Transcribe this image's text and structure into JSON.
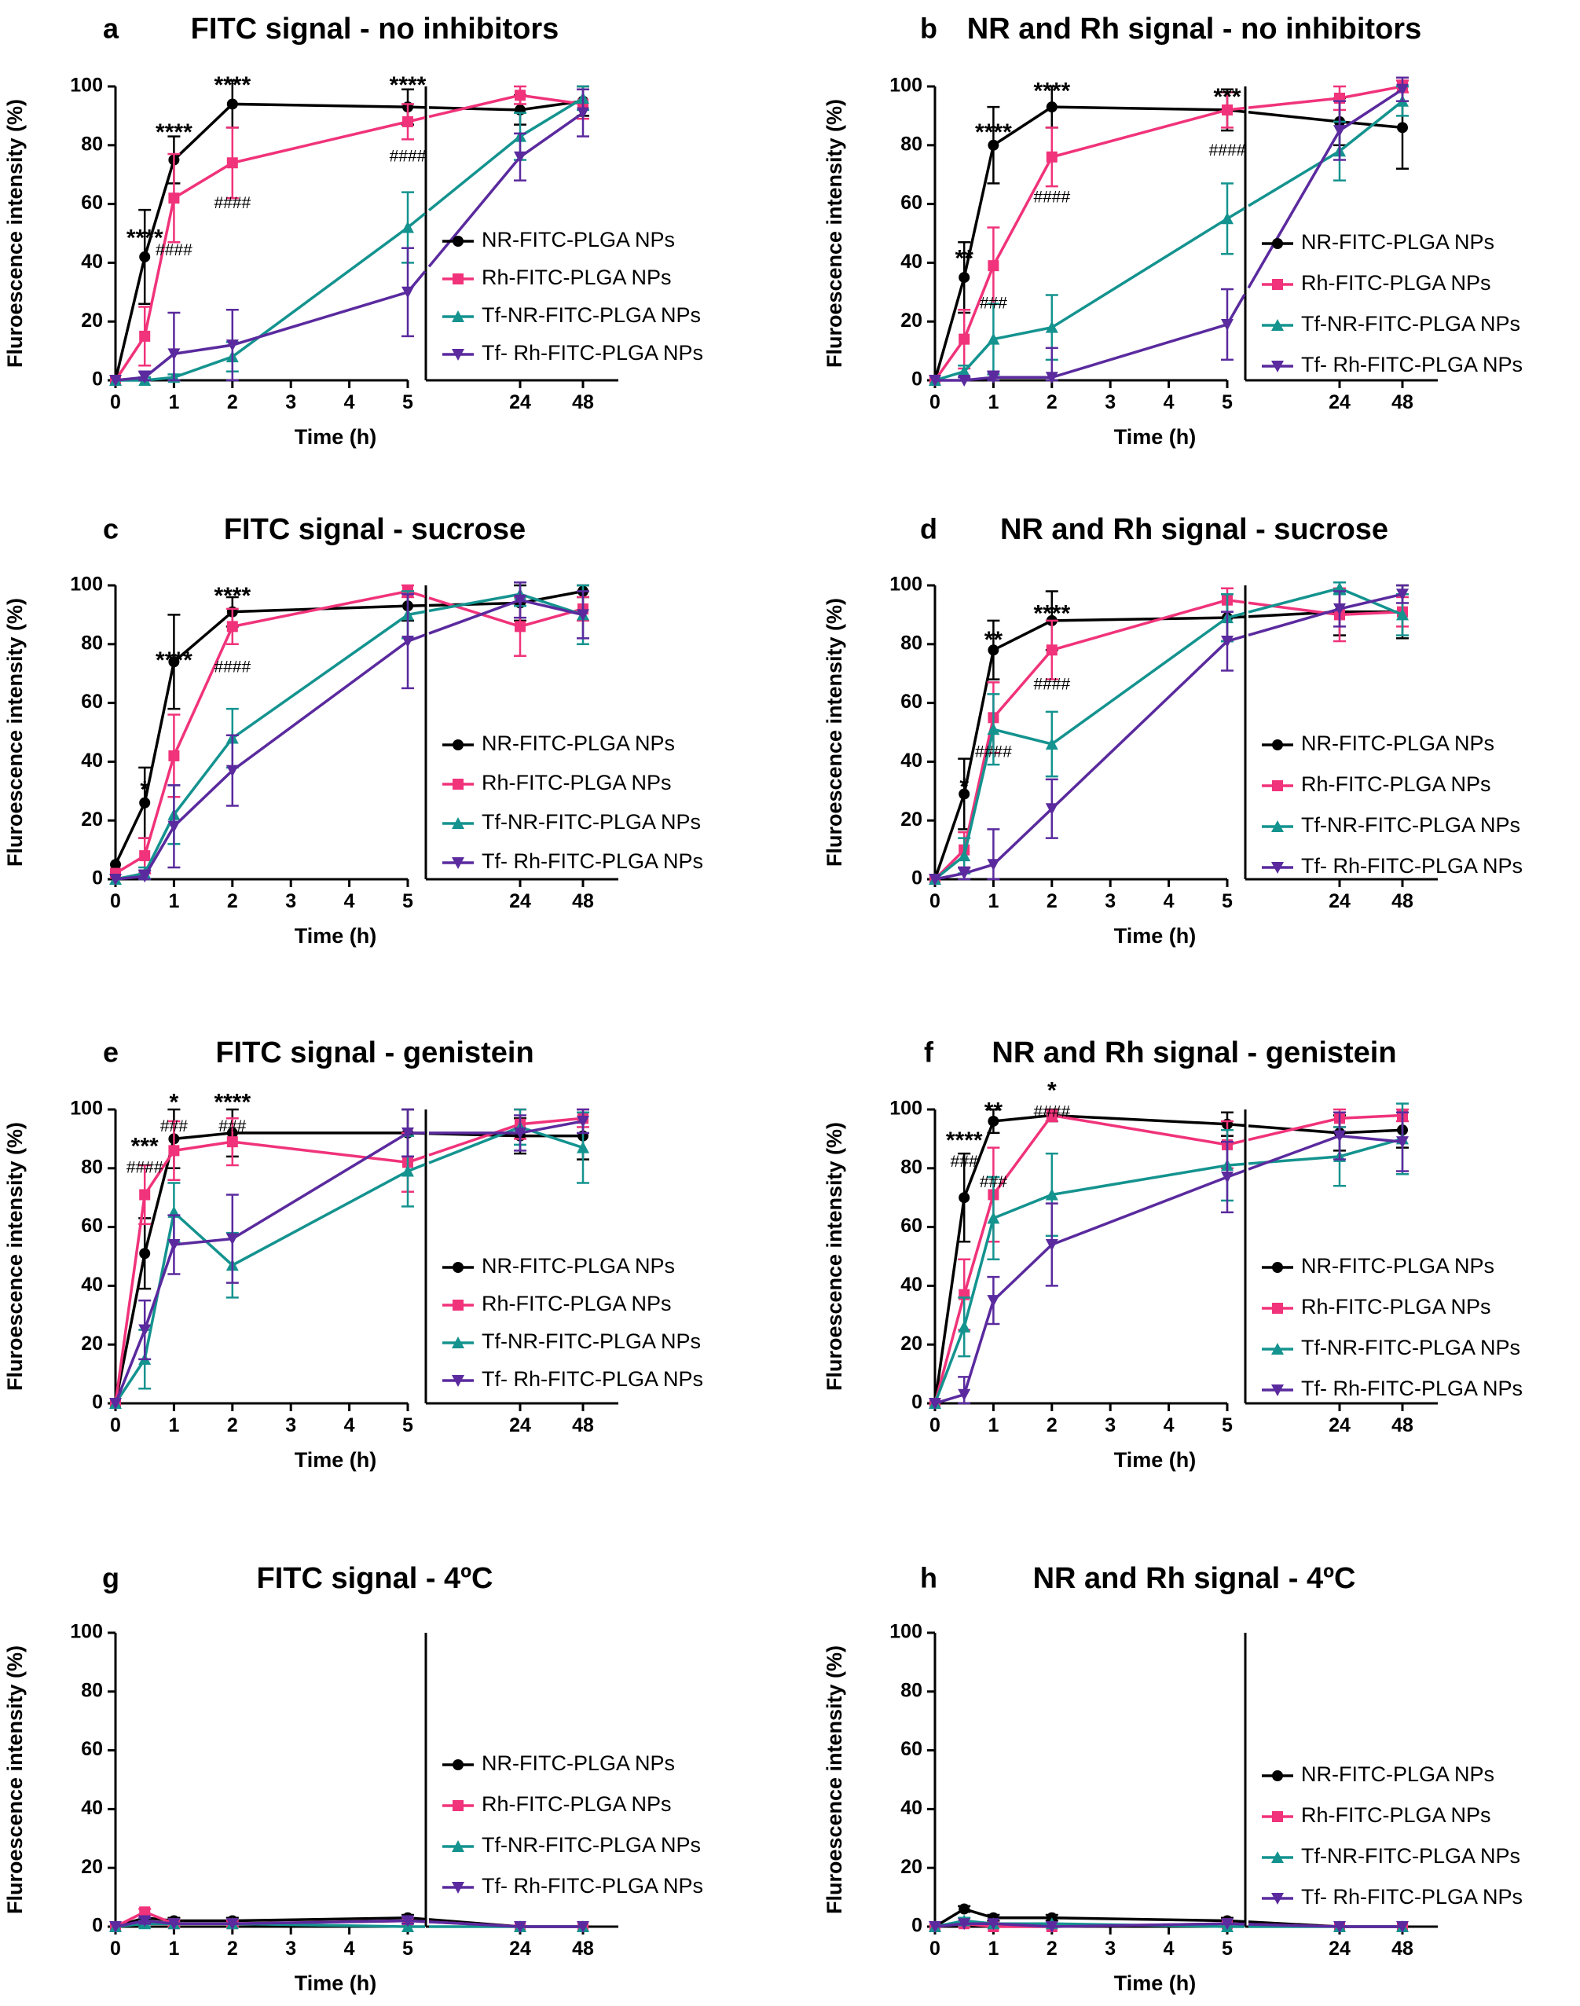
{
  "series_styles": [
    {
      "name": "NR-FITC-PLGA NPs",
      "color": "#000000",
      "marker": "circle"
    },
    {
      "name": "Rh-FITC-PLGA NPs",
      "color": "#f0337a",
      "marker": "square"
    },
    {
      "name": "Tf-NR-FITC-PLGA NPs",
      "color": "#14938f",
      "marker": "triangle-up"
    },
    {
      "name": "Tf- Rh-FITC-PLGA NPs",
      "color": "#5a2a9e",
      "marker": "triangle-down"
    }
  ],
  "chart_data": [
    {
      "panel": "a",
      "title": "FITC signal - no inhibitors",
      "type": "line",
      "xlabel": "Time (h)",
      "ylabel": "Fluroescence intensity (%)",
      "ylim": [
        0,
        100
      ],
      "yticks": [
        "0",
        "20",
        "40",
        "60",
        "80",
        "100"
      ],
      "x": [
        0,
        0.5,
        1,
        2,
        5,
        24,
        48
      ],
      "xticks": [
        "0",
        "1",
        "2",
        "3",
        "4",
        "5",
        "24",
        "48"
      ],
      "legend": "right",
      "series": [
        {
          "name": "NR-FITC-PLGA NPs",
          "values": [
            0,
            42,
            75,
            94,
            93,
            92,
            95
          ],
          "err": [
            0,
            16,
            8,
            8,
            6,
            5,
            5
          ]
        },
        {
          "name": "Rh-FITC-PLGA NPs",
          "values": [
            0,
            15,
            62,
            74,
            88,
            97,
            94
          ],
          "err": [
            0,
            10,
            15,
            12,
            6,
            3,
            5
          ]
        },
        {
          "name": "Tf-NR-FITC-PLGA NPs",
          "values": [
            0,
            0,
            1,
            8,
            52,
            83,
            96
          ],
          "err": [
            0,
            1,
            1,
            5,
            12,
            8,
            4
          ]
        },
        {
          "name": "Tf- Rh-FITC-PLGA NPs",
          "values": [
            0,
            1,
            9,
            12,
            30,
            76,
            91
          ],
          "err": [
            0,
            2,
            14,
            12,
            15,
            8,
            8
          ]
        }
      ],
      "annotations": [
        {
          "x": 0.5,
          "y": 48,
          "text": "****"
        },
        {
          "x": 1,
          "y": 84,
          "text": "****"
        },
        {
          "x": 1,
          "y": 44,
          "text": "####"
        },
        {
          "x": 2,
          "y": 100,
          "text": "****"
        },
        {
          "x": 2,
          "y": 60,
          "text": "####"
        },
        {
          "x": 5,
          "y": 100,
          "text": "****"
        },
        {
          "x": 5,
          "y": 76,
          "text": "####"
        }
      ]
    },
    {
      "panel": "b",
      "title": "NR and Rh signal - no inhibitors",
      "type": "line",
      "xlabel": "Time (h)",
      "ylabel": "Fluroescence intensity (%)",
      "ylim": [
        0,
        100
      ],
      "yticks": [
        "0",
        "20",
        "40",
        "60",
        "80",
        "100"
      ],
      "x": [
        0,
        0.5,
        1,
        2,
        5,
        24,
        48
      ],
      "xticks": [
        "0",
        "1",
        "2",
        "3",
        "4",
        "5",
        "24",
        "48"
      ],
      "legend": "right",
      "series": [
        {
          "name": "NR-FITC-PLGA NPs",
          "values": [
            0,
            35,
            80,
            93,
            92,
            88,
            86
          ],
          "err": [
            0,
            12,
            13,
            7,
            7,
            8,
            14
          ]
        },
        {
          "name": "Rh-FITC-PLGA NPs",
          "values": [
            0,
            14,
            39,
            76,
            92,
            96,
            100
          ],
          "err": [
            0,
            10,
            13,
            10,
            6,
            4,
            2
          ]
        },
        {
          "name": "Tf-NR-FITC-PLGA NPs",
          "values": [
            0,
            3,
            14,
            18,
            55,
            78,
            95
          ],
          "err": [
            0,
            2,
            12,
            11,
            12,
            10,
            5
          ]
        },
        {
          "name": "Tf- Rh-FITC-PLGA NPs",
          "values": [
            0,
            0,
            1,
            1,
            19,
            85,
            99
          ],
          "err": [
            0,
            1,
            2,
            10,
            12,
            10,
            4
          ]
        }
      ],
      "annotations": [
        {
          "x": 0.5,
          "y": 41,
          "text": "**"
        },
        {
          "x": 1,
          "y": 84,
          "text": "****"
        },
        {
          "x": 1,
          "y": 26,
          "text": "###"
        },
        {
          "x": 2,
          "y": 98,
          "text": "****"
        },
        {
          "x": 2,
          "y": 62,
          "text": "####"
        },
        {
          "x": 5,
          "y": 96,
          "text": "***"
        },
        {
          "x": 5,
          "y": 78,
          "text": "####"
        }
      ]
    },
    {
      "panel": "c",
      "title": "FITC signal - sucrose",
      "type": "line",
      "xlabel": "Time (h)",
      "ylabel": "Fluroescence intensity (%)",
      "ylim": [
        0,
        100
      ],
      "yticks": [
        "0",
        "20",
        "40",
        "60",
        "80",
        "100"
      ],
      "x": [
        0,
        0.5,
        1,
        2,
        5,
        24,
        48
      ],
      "xticks": [
        "0",
        "1",
        "2",
        "3",
        "4",
        "5",
        "24",
        "48"
      ],
      "legend": "right",
      "series": [
        {
          "name": "NR-FITC-PLGA NPs",
          "values": [
            5,
            26,
            74,
            91,
            93,
            94,
            98
          ],
          "err": [
            0,
            12,
            16,
            5,
            5,
            6,
            2
          ]
        },
        {
          "name": "Rh-FITC-PLGA NPs",
          "values": [
            2,
            8,
            42,
            86,
            98,
            86,
            92
          ],
          "err": [
            0,
            6,
            14,
            6,
            2,
            10,
            4
          ]
        },
        {
          "name": "Tf-NR-FITC-PLGA NPs",
          "values": [
            0,
            2,
            22,
            48,
            90,
            97,
            90
          ],
          "err": [
            0,
            2,
            10,
            10,
            8,
            4,
            10
          ]
        },
        {
          "name": "Tf- Rh-FITC-PLGA NPs",
          "values": [
            0,
            1,
            18,
            37,
            81,
            95,
            90
          ],
          "err": [
            0,
            2,
            14,
            12,
            16,
            6,
            8
          ]
        }
      ],
      "annotations": [
        {
          "x": 0.5,
          "y": 30,
          "text": "*"
        },
        {
          "x": 1,
          "y": 74,
          "text": "****"
        },
        {
          "x": 2,
          "y": 96,
          "text": "****"
        },
        {
          "x": 2,
          "y": 72,
          "text": "####"
        }
      ]
    },
    {
      "panel": "d",
      "title": "NR and Rh signal - sucrose",
      "type": "line",
      "xlabel": "Time (h)",
      "ylabel": "Fluroescence intensity (%)",
      "ylim": [
        0,
        100
      ],
      "yticks": [
        "0",
        "20",
        "40",
        "60",
        "80",
        "100"
      ],
      "x": [
        0,
        0.5,
        1,
        2,
        5,
        24,
        48
      ],
      "xticks": [
        "0",
        "1",
        "2",
        "3",
        "4",
        "5",
        "24",
        "48"
      ],
      "legend": "right",
      "series": [
        {
          "name": "NR-FITC-PLGA NPs",
          "values": [
            0,
            29,
            78,
            88,
            89,
            91,
            91
          ],
          "err": [
            0,
            12,
            10,
            10,
            8,
            8,
            9
          ]
        },
        {
          "name": "Rh-FITC-PLGA NPs",
          "values": [
            0,
            10,
            55,
            78,
            95,
            90,
            91
          ],
          "err": [
            0,
            6,
            12,
            10,
            4,
            9,
            5
          ]
        },
        {
          "name": "Tf-NR-FITC-PLGA NPs",
          "values": [
            0,
            8,
            51,
            46,
            89,
            99,
            90
          ],
          "err": [
            0,
            6,
            12,
            11,
            8,
            2,
            7
          ]
        },
        {
          "name": "Tf- Rh-FITC-PLGA NPs",
          "values": [
            0,
            2,
            5,
            24,
            81,
            92,
            97
          ],
          "err": [
            0,
            2,
            12,
            10,
            10,
            6,
            3
          ]
        }
      ],
      "annotations": [
        {
          "x": 0.5,
          "y": 31,
          "text": "*"
        },
        {
          "x": 1,
          "y": 81,
          "text": "**"
        },
        {
          "x": 1,
          "y": 43,
          "text": "####"
        },
        {
          "x": 2,
          "y": 90,
          "text": "****"
        },
        {
          "x": 2,
          "y": 66,
          "text": "####"
        }
      ]
    },
    {
      "panel": "e",
      "title": "FITC signal - genistein",
      "type": "line",
      "xlabel": "Time (h)",
      "ylabel": "Fluroescence intensity (%)",
      "ylim": [
        0,
        100
      ],
      "yticks": [
        "0",
        "20",
        "40",
        "60",
        "80",
        "100"
      ],
      "x": [
        0,
        0.5,
        1,
        2,
        5,
        24,
        48
      ],
      "xticks": [
        "0",
        "1",
        "2",
        "3",
        "4",
        "5",
        "24",
        "48"
      ],
      "legend": "right",
      "series": [
        {
          "name": "NR-FITC-PLGA NPs",
          "values": [
            0,
            51,
            90,
            92,
            92,
            91,
            91
          ],
          "err": [
            0,
            12,
            10,
            8,
            8,
            6,
            8
          ]
        },
        {
          "name": "Rh-FITC-PLGA NPs",
          "values": [
            0,
            71,
            86,
            89,
            82,
            95,
            97
          ],
          "err": [
            0,
            10,
            10,
            8,
            10,
            5,
            3
          ]
        },
        {
          "name": "Tf-NR-FITC-PLGA NPs",
          "values": [
            0,
            15,
            65,
            47,
            79,
            94,
            87
          ],
          "err": [
            0,
            10,
            10,
            11,
            12,
            6,
            12
          ]
        },
        {
          "name": "Tf- Rh-FITC-PLGA NPs",
          "values": [
            0,
            25,
            54,
            56,
            92,
            92,
            96
          ],
          "err": [
            0,
            10,
            10,
            15,
            8,
            6,
            4
          ]
        }
      ],
      "annotations": [
        {
          "x": 0.5,
          "y": 87,
          "text": "***"
        },
        {
          "x": 0.5,
          "y": 80,
          "text": "####"
        },
        {
          "x": 1,
          "y": 102,
          "text": "*"
        },
        {
          "x": 1,
          "y": 94,
          "text": "###"
        },
        {
          "x": 2,
          "y": 102,
          "text": "****"
        },
        {
          "x": 2,
          "y": 94,
          "text": "###"
        }
      ]
    },
    {
      "panel": "f",
      "title": "NR and Rh signal - genistein",
      "type": "line",
      "xlabel": "Time (h)",
      "ylabel": "Fluroescence intensity (%)",
      "ylim": [
        0,
        100
      ],
      "yticks": [
        "0",
        "20",
        "40",
        "60",
        "80",
        "100"
      ],
      "x": [
        0,
        0.5,
        1,
        2,
        5,
        24,
        48
      ],
      "xticks": [
        "0",
        "1",
        "2",
        "3",
        "4",
        "5",
        "24",
        "48"
      ],
      "legend": "right",
      "series": [
        {
          "name": "NR-FITC-PLGA NPs",
          "values": [
            0,
            70,
            96,
            98,
            95,
            92,
            93
          ],
          "err": [
            0,
            15,
            4,
            2,
            4,
            6,
            6
          ]
        },
        {
          "name": "Rh-FITC-PLGA NPs",
          "values": [
            0,
            37,
            71,
            98,
            88,
            97,
            98
          ],
          "err": [
            0,
            12,
            16,
            2,
            8,
            3,
            2
          ]
        },
        {
          "name": "Tf-NR-FITC-PLGA NPs",
          "values": [
            0,
            26,
            63,
            71,
            81,
            84,
            90
          ],
          "err": [
            0,
            10,
            14,
            14,
            12,
            10,
            12
          ]
        },
        {
          "name": "Tf- Rh-FITC-PLGA NPs",
          "values": [
            0,
            3,
            35,
            54,
            77,
            91,
            89
          ],
          "err": [
            0,
            6,
            8,
            14,
            12,
            8,
            10
          ]
        }
      ],
      "annotations": [
        {
          "x": 0.5,
          "y": 89,
          "text": "****"
        },
        {
          "x": 0.5,
          "y": 82,
          "text": "###"
        },
        {
          "x": 1,
          "y": 99,
          "text": "**"
        },
        {
          "x": 1,
          "y": 75,
          "text": "###"
        },
        {
          "x": 2,
          "y": 106,
          "text": "*"
        },
        {
          "x": 2,
          "y": 99,
          "text": "####"
        }
      ]
    },
    {
      "panel": "g",
      "title": "FITC signal - 4ºC",
      "type": "line",
      "xlabel": "Time (h)",
      "ylabel": "Fluroescence intensity (%)",
      "ylim": [
        0,
        100
      ],
      "yticks": [
        "0",
        "20",
        "40",
        "60",
        "80",
        "100"
      ],
      "x": [
        0,
        0.5,
        1,
        2,
        5,
        24,
        48
      ],
      "xticks": [
        "0",
        "1",
        "2",
        "3",
        "4",
        "5",
        "24",
        "48"
      ],
      "legend": "right",
      "series": [
        {
          "name": "NR-FITC-PLGA NPs",
          "values": [
            0,
            3,
            2,
            2,
            3,
            0,
            0
          ],
          "err": [
            0,
            1,
            1,
            1,
            1,
            0,
            0
          ]
        },
        {
          "name": "Rh-FITC-PLGA NPs",
          "values": [
            0,
            5,
            1,
            1,
            2,
            0,
            0
          ],
          "err": [
            0,
            1,
            1,
            1,
            1,
            0,
            0
          ]
        },
        {
          "name": "Tf-NR-FITC-PLGA NPs",
          "values": [
            0,
            1,
            1,
            1,
            0,
            0,
            0
          ],
          "err": [
            0,
            1,
            0,
            0,
            0,
            0,
            0
          ]
        },
        {
          "name": "Tf- Rh-FITC-PLGA NPs",
          "values": [
            0,
            2,
            1,
            1,
            2,
            0,
            0
          ],
          "err": [
            0,
            1,
            0,
            0,
            1,
            0,
            0
          ]
        }
      ],
      "annotations": []
    },
    {
      "panel": "h",
      "title": "NR and Rh signal - 4ºC",
      "type": "line",
      "xlabel": "Time (h)",
      "ylabel": "Fluroescence intensity (%)",
      "ylim": [
        0,
        100
      ],
      "yticks": [
        "0",
        "20",
        "40",
        "60",
        "80",
        "100"
      ],
      "x": [
        0,
        0.5,
        1,
        2,
        5,
        24,
        48
      ],
      "xticks": [
        "0",
        "1",
        "2",
        "3",
        "4",
        "5",
        "24",
        "48"
      ],
      "legend": "right",
      "series": [
        {
          "name": "NR-FITC-PLGA NPs",
          "values": [
            0,
            6,
            3,
            3,
            2,
            0,
            0
          ],
          "err": [
            0,
            1,
            1,
            1,
            1,
            0,
            0
          ]
        },
        {
          "name": "Rh-FITC-PLGA NPs",
          "values": [
            0,
            1,
            0,
            0,
            1,
            0,
            0
          ],
          "err": [
            0,
            1,
            0,
            0,
            0,
            0,
            0
          ]
        },
        {
          "name": "Tf-NR-FITC-PLGA NPs",
          "values": [
            0,
            2,
            1,
            1,
            0,
            0,
            0
          ],
          "err": [
            0,
            1,
            0,
            0,
            0,
            0,
            0
          ]
        },
        {
          "name": "Tf- Rh-FITC-PLGA NPs",
          "values": [
            0,
            1,
            1,
            0,
            1,
            0,
            0
          ],
          "err": [
            0,
            0,
            0,
            0,
            0,
            0,
            0
          ]
        }
      ],
      "annotations": []
    }
  ]
}
